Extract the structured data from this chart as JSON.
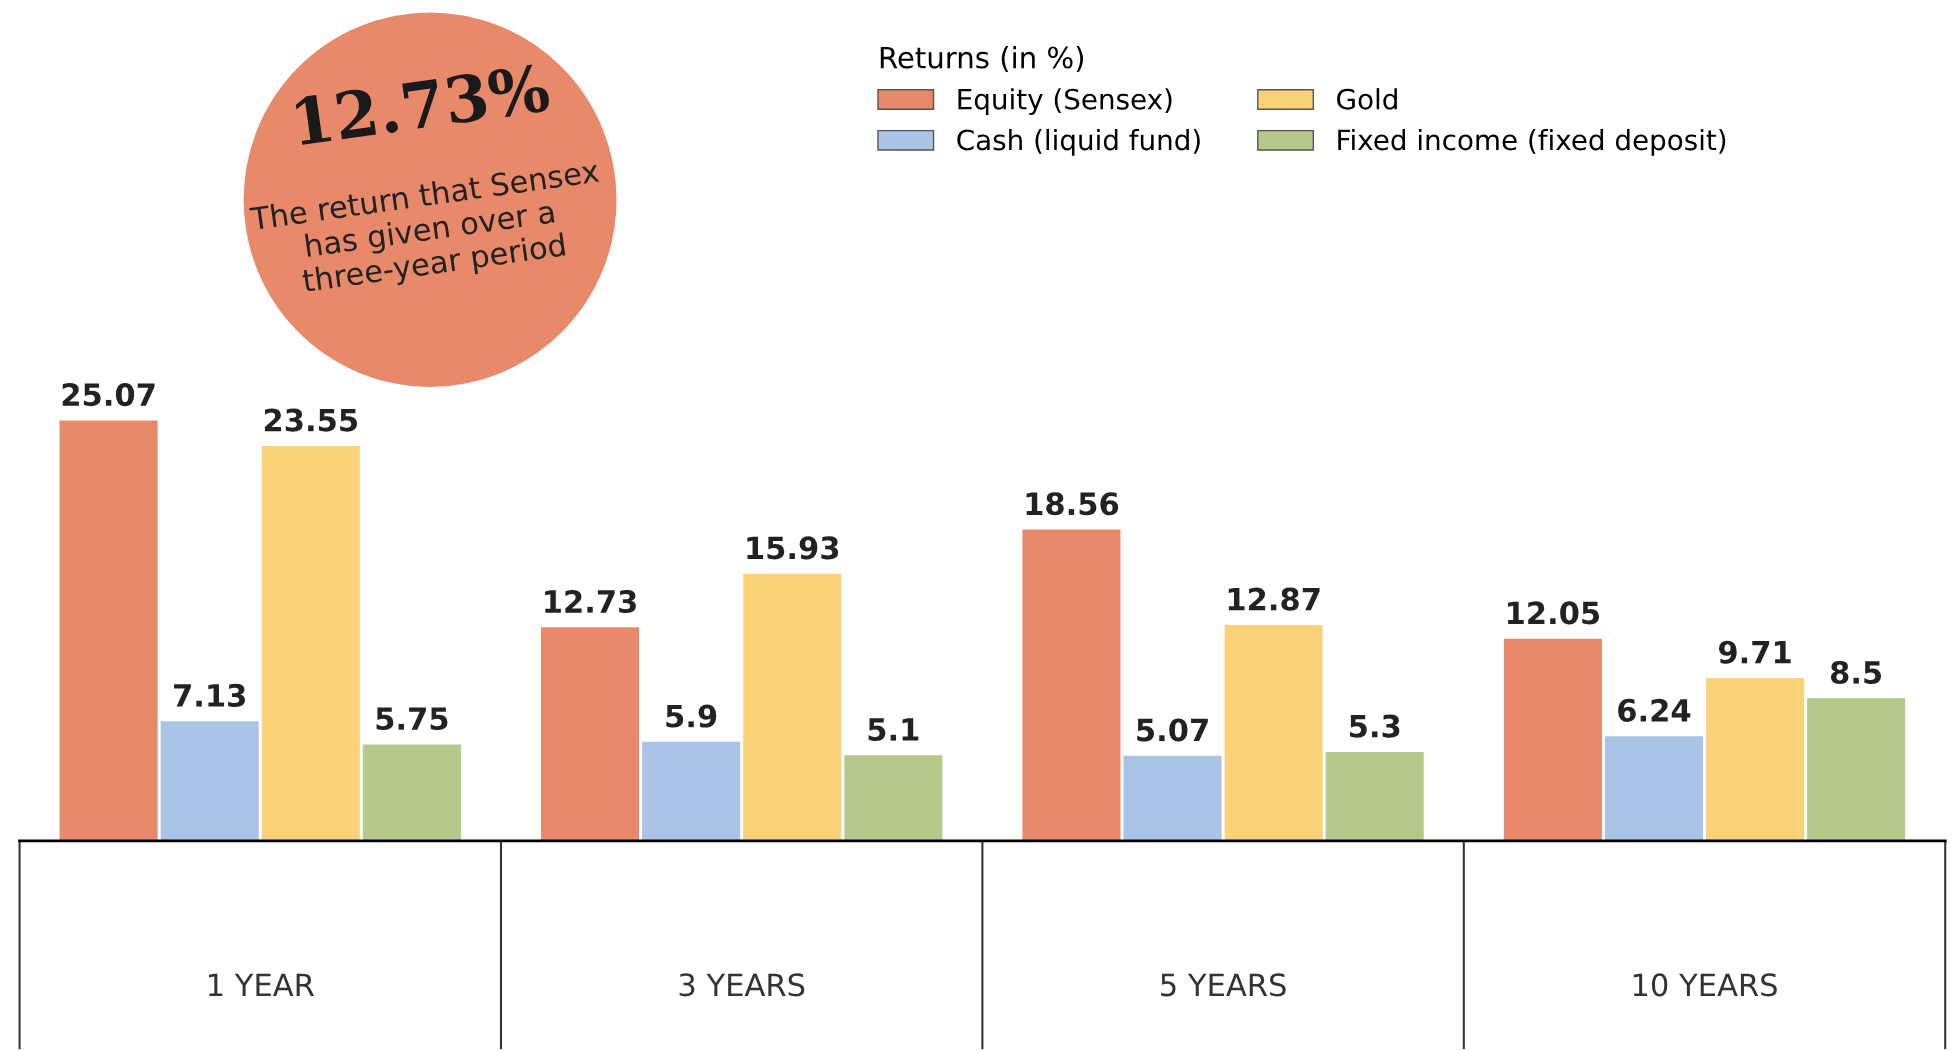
{
  "chart_data": {
    "type": "bar",
    "categories": [
      "1 YEAR",
      "3 YEARS",
      "5 YEARS",
      "10 YEARS"
    ],
    "series": [
      {
        "name": "Equity (Sensex)",
        "color": "#e8896a",
        "values": [
          25.07,
          12.73,
          18.56,
          12.05
        ]
      },
      {
        "name": "Cash (liquid fund)",
        "color": "#a9c4e6",
        "values": [
          7.13,
          5.9,
          5.07,
          6.24
        ]
      },
      {
        "name": "Gold",
        "color": "#fbd277",
        "values": [
          23.55,
          15.93,
          12.87,
          9.71
        ]
      },
      {
        "name": "Fixed income (fixed deposit)",
        "color": "#b5c98a",
        "values": [
          5.75,
          5.1,
          5.3,
          8.5
        ]
      }
    ],
    "legend_title": "Returns (in %)",
    "annotations": [
      "12.73%",
      "The return that Sensex has given over a three-year period"
    ],
    "data_labels": true,
    "legend": "top right",
    "grid": false
  }
}
